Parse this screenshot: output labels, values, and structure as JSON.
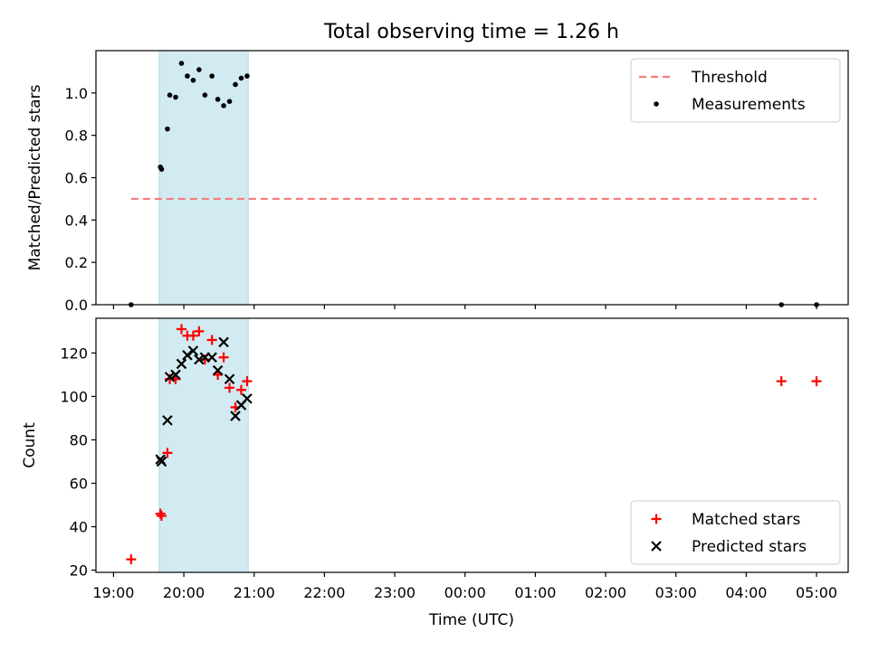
{
  "figure": {
    "title": "Total observing time = 1.26 h",
    "xlabel": "Time (UTC)",
    "xtick_labels": [
      "19:00",
      "20:00",
      "21:00",
      "22:00",
      "23:00",
      "00:00",
      "01:00",
      "02:00",
      "03:00",
      "04:00",
      "05:00"
    ]
  },
  "colors": {
    "threshold": "#f47c7c",
    "measurements": "#000000",
    "matched": "#ff0000",
    "predicted": "#000000",
    "shade": "#add8e6"
  },
  "chart_data": [
    {
      "type": "scatter",
      "ylabel": "Matched/Predicted stars",
      "ylim": [
        0,
        1.2
      ],
      "yticks": [
        "0.0",
        "0.2",
        "0.4",
        "0.6",
        "0.8",
        "1.0"
      ],
      "xlim": [
        "18:45",
        "05:27"
      ],
      "shaded_interval": [
        "19:39",
        "20:55"
      ],
      "legend_position": "top-right",
      "threshold": {
        "name": "Threshold",
        "value": 0.5,
        "x_range": [
          "19:15",
          "05:00"
        ]
      },
      "series": [
        {
          "name": "Measurements",
          "x": [
            "19:15",
            "19:40",
            "19:41",
            "19:46",
            "19:48",
            "19:53",
            "19:58",
            "20:03",
            "20:08",
            "20:13",
            "20:18",
            "20:24",
            "20:29",
            "20:34",
            "20:39",
            "20:44",
            "20:49",
            "20:54",
            "04:30",
            "05:00"
          ],
          "y": [
            0.0,
            0.65,
            0.64,
            0.83,
            0.99,
            0.98,
            1.14,
            1.08,
            1.06,
            1.11,
            0.99,
            1.08,
            0.97,
            0.94,
            0.96,
            1.04,
            1.07,
            1.08,
            0.0,
            0.0
          ]
        }
      ]
    },
    {
      "type": "scatter",
      "ylabel": "Count",
      "ylim": [
        19,
        136
      ],
      "yticks": [
        "20",
        "40",
        "60",
        "80",
        "100",
        "120"
      ],
      "xlim": [
        "18:45",
        "05:27"
      ],
      "shaded_interval": [
        "19:39",
        "20:55"
      ],
      "legend_position": "bottom-right",
      "series": [
        {
          "name": "Matched stars",
          "marker": "plus",
          "x": [
            "19:15",
            "19:40",
            "19:41",
            "19:46",
            "19:48",
            "19:53",
            "19:58",
            "20:03",
            "20:08",
            "20:13",
            "20:18",
            "20:24",
            "20:29",
            "20:34",
            "20:39",
            "20:44",
            "20:49",
            "20:54",
            "04:30",
            "05:00"
          ],
          "y": [
            25,
            46,
            45,
            74,
            108,
            108,
            131,
            128,
            128,
            130,
            117,
            126,
            110,
            118,
            104,
            95,
            103,
            107,
            107,
            107
          ]
        },
        {
          "name": "Predicted stars",
          "marker": "x",
          "x": [
            "19:40",
            "19:41",
            "19:46",
            "19:48",
            "19:53",
            "19:58",
            "20:03",
            "20:08",
            "20:13",
            "20:18",
            "20:24",
            "20:29",
            "20:34",
            "20:39",
            "20:44",
            "20:49",
            "20:54"
          ],
          "y": [
            71,
            70,
            89,
            109,
            110,
            115,
            119,
            121,
            117,
            118,
            118,
            112,
            125,
            108,
            91,
            96,
            99
          ]
        }
      ]
    }
  ]
}
